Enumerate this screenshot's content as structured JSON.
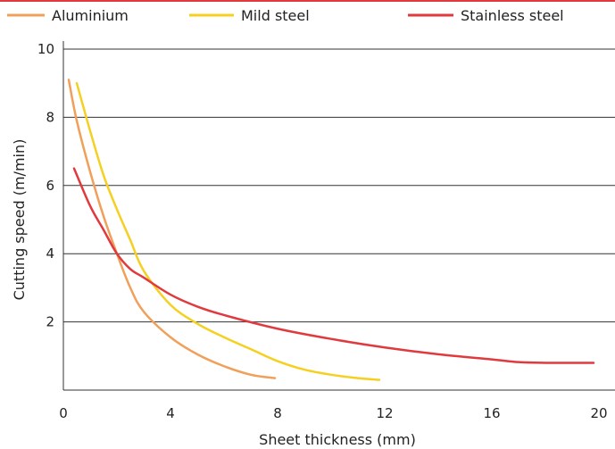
{
  "chart_data": {
    "type": "line",
    "title": "",
    "xlabel": "Sheet thickness (mm)",
    "ylabel": "Cutting speed (m/min)",
    "xlim": [
      0,
      20
    ],
    "ylim": [
      0,
      10
    ],
    "x_ticks": [
      "0",
      "4",
      "8",
      "12",
      "16",
      "20"
    ],
    "y_ticks": [
      "2",
      "4",
      "6",
      "8",
      "10"
    ],
    "grid": "horizontal",
    "legend_position": "top",
    "series": [
      {
        "name": "Aluminium",
        "color": "#F0A05A",
        "x": [
          0.2,
          0.5,
          1,
          1.5,
          2,
          2.5,
          3,
          4,
          5,
          6,
          7,
          7.9
        ],
        "y": [
          9.1,
          7.9,
          6.4,
          5.1,
          4.0,
          3.0,
          2.3,
          1.55,
          1.05,
          0.7,
          0.45,
          0.35
        ]
      },
      {
        "name": "Mild steel",
        "color": "#F5D020",
        "x": [
          0.5,
          1,
          1.5,
          2,
          2.5,
          3,
          4,
          5,
          6,
          7,
          8,
          9,
          10,
          11,
          11.8
        ],
        "y": [
          9.0,
          7.6,
          6.3,
          5.3,
          4.4,
          3.5,
          2.5,
          1.95,
          1.55,
          1.2,
          0.85,
          0.6,
          0.45,
          0.35,
          0.3
        ]
      },
      {
        "name": "Stainless steel",
        "color": "#E03A3E",
        "x": [
          0.4,
          1,
          1.5,
          2,
          2.5,
          3,
          4,
          5,
          6,
          8,
          10,
          12,
          14,
          16,
          17,
          18,
          19,
          19.8
        ],
        "y": [
          6.5,
          5.4,
          4.7,
          4.0,
          3.55,
          3.3,
          2.8,
          2.45,
          2.2,
          1.8,
          1.5,
          1.25,
          1.05,
          0.9,
          0.82,
          0.8,
          0.8,
          0.8
        ]
      }
    ]
  }
}
